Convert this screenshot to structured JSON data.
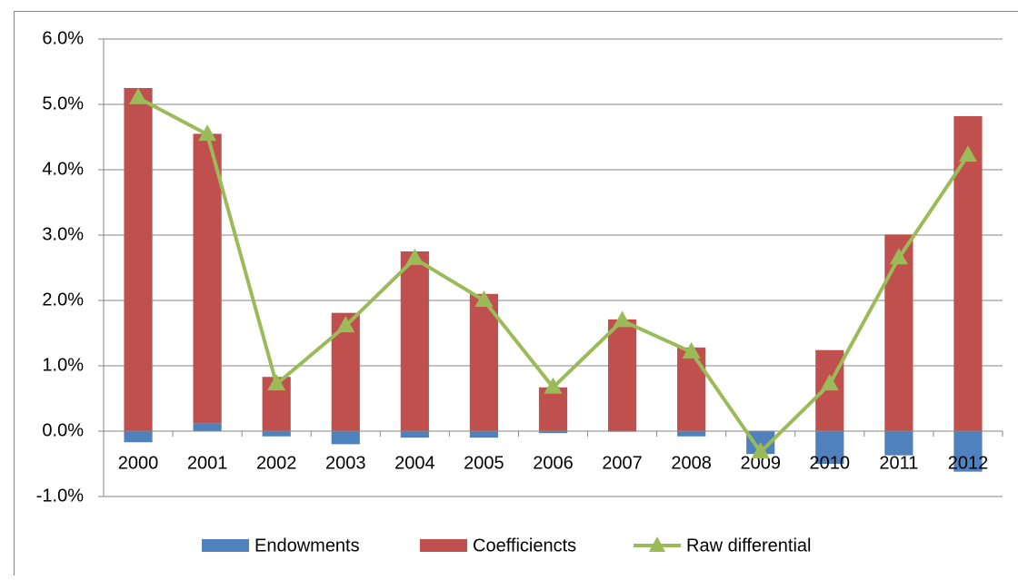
{
  "chart_data": {
    "type": "stacked-bar-line",
    "categories": [
      "2000",
      "2001",
      "2002",
      "2003",
      "2004",
      "2005",
      "2006",
      "2007",
      "2008",
      "2009",
      "2010",
      "2011",
      "2012"
    ],
    "series": [
      {
        "name": "Endowments",
        "color": "#4f81bd",
        "kind": "bar",
        "values": [
          -0.17,
          0.12,
          -0.08,
          -0.2,
          -0.1,
          -0.1,
          -0.03,
          -0.01,
          -0.08,
          -0.35,
          -0.5,
          -0.37,
          -0.62
        ]
      },
      {
        "name": "Coefficiencts",
        "color": "#c0504d",
        "kind": "bar",
        "values": [
          5.25,
          4.43,
          0.83,
          1.81,
          2.75,
          2.1,
          0.67,
          1.71,
          1.28,
          0,
          1.24,
          3.01,
          4.82
        ]
      },
      {
        "name": "Raw differential",
        "color": "#9bbb59",
        "kind": "line",
        "values": [
          5.1,
          4.54,
          0.72,
          1.61,
          2.64,
          2.0,
          0.67,
          1.69,
          1.21,
          -0.32,
          0.72,
          2.65,
          4.22
        ]
      }
    ],
    "ylim": [
      -1,
      6
    ],
    "yticks": [
      {
        "value": -1,
        "label": "-1.0%"
      },
      {
        "value": 0,
        "label": "0.0%"
      },
      {
        "value": 1,
        "label": "1.0%"
      },
      {
        "value": 2,
        "label": "2.0%"
      },
      {
        "value": 3,
        "label": "3.0%"
      },
      {
        "value": 4,
        "label": "4.0%"
      },
      {
        "value": 5,
        "label": "5.0%"
      },
      {
        "value": 6,
        "label": "6.0%"
      }
    ],
    "grid": true,
    "legend": "bottom"
  }
}
